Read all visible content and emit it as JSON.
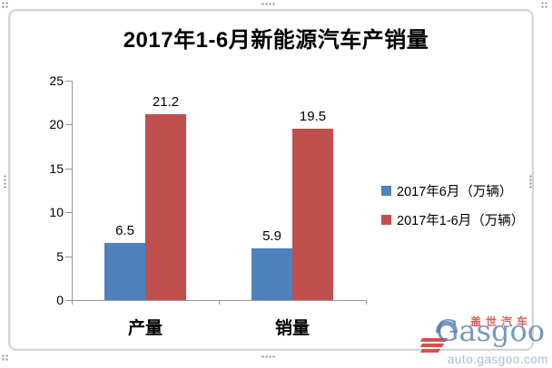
{
  "chart_data": {
    "type": "bar",
    "title": "2017年1-6月新能源汽车产销量",
    "categories": [
      "产量",
      "销量"
    ],
    "series": [
      {
        "name": "2017年6月（万辆）",
        "color": "#4F81BD",
        "values": [
          6.5,
          5.9
        ]
      },
      {
        "name": "2017年1-6月（万辆）",
        "color": "#C0504D",
        "values": [
          21.2,
          19.5
        ]
      }
    ],
    "ylim": [
      0,
      25
    ],
    "yticks": [
      0,
      5,
      10,
      15,
      20,
      25
    ],
    "grid": false,
    "legend_position": "right",
    "data_labels": true,
    "axis_color": "#969696",
    "text_color": "#000000"
  },
  "watermark": {
    "brand_cn": "盖世汽车",
    "brand_en": "Gasgoo",
    "url": "auto.gasgoo.com"
  }
}
